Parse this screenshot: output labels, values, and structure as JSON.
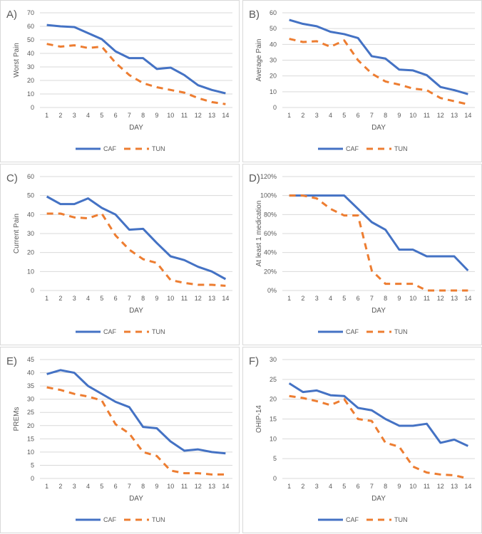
{
  "chart_data": [
    {
      "type": "line",
      "label": "A)",
      "ylabel": "Worst Pain",
      "xlabel": "DAY",
      "ylim": [
        0,
        70
      ],
      "ystep": 10,
      "percent": false,
      "categories": [
        1,
        2,
        3,
        4,
        5,
        6,
        7,
        8,
        9,
        10,
        11,
        12,
        13,
        14
      ],
      "series": [
        {
          "name": "CAF",
          "color": "#4472c4",
          "values": [
            61,
            60,
            59.5,
            55,
            50.5,
            41.5,
            36.5,
            36.5,
            28.5,
            29.5,
            24,
            16.5,
            13,
            10.5
          ]
        },
        {
          "name": "TUN",
          "color": "#ed7d31",
          "values": [
            47,
            45,
            46,
            44,
            45,
            33,
            24,
            18,
            15,
            13,
            11,
            7,
            4,
            2.5
          ]
        }
      ]
    },
    {
      "type": "line",
      "label": "B)",
      "ylabel": "Average Pain",
      "xlabel": "DAY",
      "ylim": [
        0,
        60
      ],
      "ystep": 10,
      "percent": false,
      "categories": [
        1,
        2,
        3,
        4,
        5,
        6,
        7,
        8,
        9,
        10,
        11,
        12,
        13,
        14
      ],
      "series": [
        {
          "name": "CAF",
          "color": "#4472c4",
          "values": [
            55.5,
            53,
            51.5,
            48,
            46.5,
            44,
            32.5,
            31,
            24,
            23.5,
            20.5,
            13,
            11,
            8.5
          ]
        },
        {
          "name": "TUN",
          "color": "#ed7d31",
          "values": [
            43.5,
            41.5,
            42,
            38.5,
            42.5,
            30,
            21.5,
            16.5,
            14.5,
            12,
            11,
            6,
            4,
            2
          ]
        }
      ]
    },
    {
      "type": "line",
      "label": "C)",
      "ylabel": "Current Pain",
      "xlabel": "DAY",
      "ylim": [
        0,
        60
      ],
      "ystep": 10,
      "percent": false,
      "categories": [
        1,
        2,
        3,
        4,
        5,
        6,
        7,
        8,
        9,
        10,
        11,
        12,
        13,
        14
      ],
      "series": [
        {
          "name": "CAF",
          "color": "#4472c4",
          "values": [
            49.5,
            45.5,
            45.5,
            48.5,
            43.5,
            40,
            32,
            32.5,
            25,
            18,
            16,
            12.5,
            10,
            6
          ]
        },
        {
          "name": "TUN",
          "color": "#ed7d31",
          "values": [
            40.5,
            40.5,
            38.5,
            38,
            40.5,
            29,
            21.5,
            16.5,
            14.5,
            5.5,
            4,
            3,
            3,
            2.5
          ]
        }
      ]
    },
    {
      "type": "line",
      "label": "D)",
      "ylabel": "At least 1 medication",
      "xlabel": "DAY",
      "ylim": [
        0,
        120
      ],
      "ystep": 20,
      "percent": true,
      "categories": [
        1,
        2,
        3,
        4,
        5,
        6,
        7,
        8,
        9,
        10,
        11,
        12,
        13,
        14
      ],
      "series": [
        {
          "name": "CAF",
          "color": "#4472c4",
          "values": [
            100,
            100,
            100,
            100,
            100,
            86,
            72,
            64,
            43,
            43,
            36,
            36,
            36,
            21
          ]
        },
        {
          "name": "TUN",
          "color": "#ed7d31",
          "values": [
            100,
            100,
            97,
            86,
            79,
            79,
            21,
            7,
            7,
            7,
            0,
            0,
            0,
            0
          ]
        }
      ]
    },
    {
      "type": "line",
      "label": "E)",
      "ylabel": "PREMs",
      "xlabel": "DAY",
      "ylim": [
        0,
        45
      ],
      "ystep": 5,
      "percent": false,
      "categories": [
        1,
        2,
        3,
        4,
        5,
        6,
        7,
        8,
        9,
        10,
        11,
        12,
        13,
        14
      ],
      "series": [
        {
          "name": "CAF",
          "color": "#4472c4",
          "values": [
            39.5,
            41,
            40,
            35,
            32,
            29,
            27,
            19.5,
            19,
            14,
            10.5,
            11,
            10,
            9.5
          ]
        },
        {
          "name": "TUN",
          "color": "#ed7d31",
          "values": [
            34.5,
            33.5,
            32,
            31,
            29.5,
            20.5,
            17,
            10,
            8.5,
            3,
            2,
            2,
            1.5,
            1.5
          ]
        }
      ]
    },
    {
      "type": "line",
      "label": "F)",
      "ylabel": "OHIP-14",
      "xlabel": "DAY",
      "ylim": [
        0,
        30
      ],
      "ystep": 5,
      "percent": false,
      "categories": [
        1,
        2,
        3,
        4,
        5,
        6,
        7,
        8,
        9,
        10,
        11,
        12,
        13,
        14
      ],
      "series": [
        {
          "name": "CAF",
          "color": "#4472c4",
          "values": [
            24,
            21.8,
            22.2,
            21,
            20.8,
            17.8,
            17.2,
            15,
            13.3,
            13.3,
            13.8,
            9,
            9.8,
            8.2
          ]
        },
        {
          "name": "TUN",
          "color": "#ed7d31",
          "values": [
            20.8,
            20.3,
            19.5,
            18.5,
            20,
            15,
            14.5,
            9,
            8,
            3,
            1.5,
            1,
            0.8,
            0
          ]
        }
      ]
    }
  ]
}
